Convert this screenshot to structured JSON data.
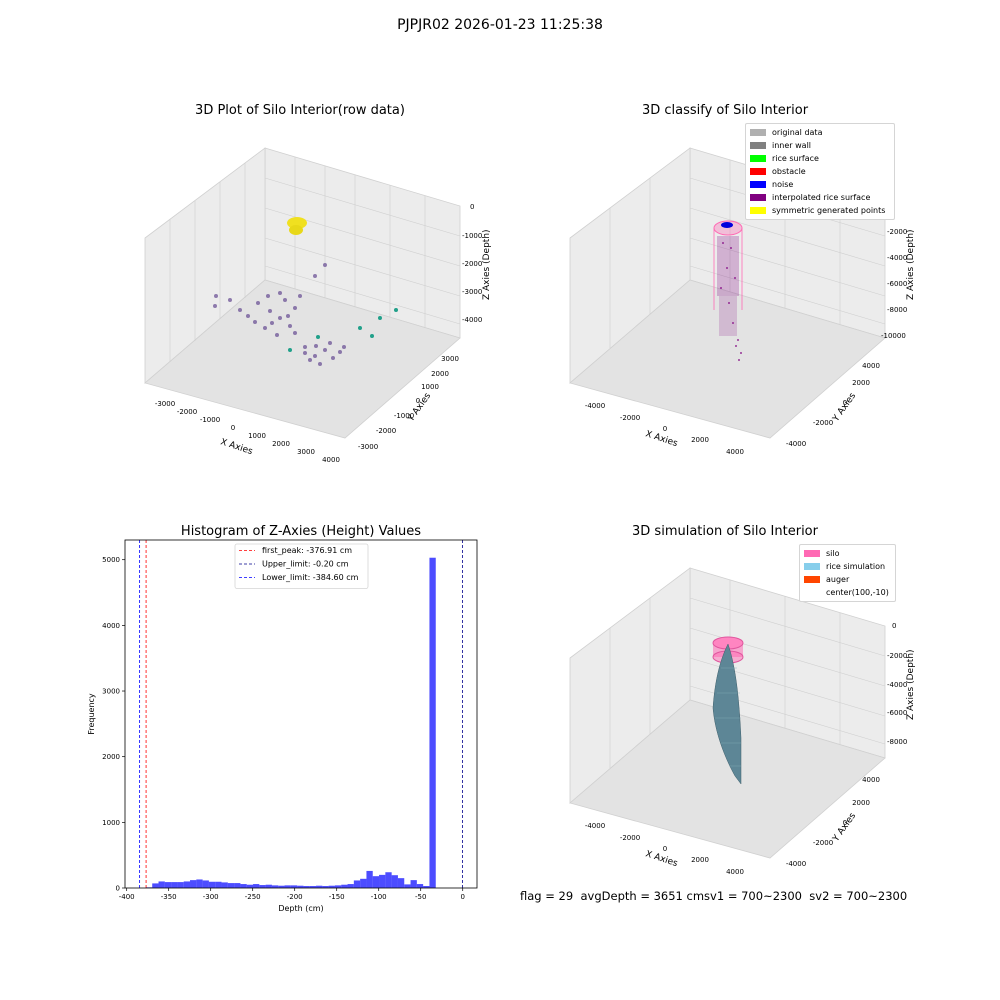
{
  "figure": {
    "suptitle": "PJPJR02 2026-01-23 11:25:38",
    "footer": "flag = 29  avgDepth = 3651 cmsv1 = 700~2300  sv2 = 700~2300"
  },
  "panels": {
    "raw": {
      "title": "3D Plot of Silo Interior(row data)",
      "xlabel": "X Axies",
      "ylabel": "Y Axies",
      "zlabel": "Z Axies (Depth)",
      "xticks": [
        "-3000",
        "-2000",
        "-1000",
        "0",
        "1000",
        "2000",
        "3000",
        "4000"
      ],
      "yticks": [
        "-3000",
        "-2000",
        "-1000",
        "0",
        "1000",
        "2000",
        "3000"
      ],
      "zticks": [
        "0",
        "-1000",
        "-2000",
        "-3000",
        "-4000"
      ]
    },
    "classify": {
      "title": "3D classify of Silo Interior",
      "xlabel": "X Axies",
      "ylabel": "Y Axies",
      "zlabel": "Z Axies (Depth)",
      "xticks": [
        "-4000",
        "-2000",
        "0",
        "2000",
        "4000"
      ],
      "yticks": [
        "-4000",
        "-2000",
        "0",
        "2000",
        "4000"
      ],
      "zticks": [
        "-2000",
        "-4000",
        "-6000",
        "-8000",
        "-10000"
      ],
      "legend": [
        {
          "label": "original data",
          "color": "#b0b0b0"
        },
        {
          "label": "inner wall",
          "color": "#808080"
        },
        {
          "label": "rice surface",
          "color": "#00ff00"
        },
        {
          "label": "obstacle",
          "color": "#ff0000"
        },
        {
          "label": "noise",
          "color": "#0000ff"
        },
        {
          "label": "interpolated rice surface",
          "color": "#800080"
        },
        {
          "label": "symmetric generated points",
          "color": "#ffff00"
        }
      ]
    },
    "simulation": {
      "title": "3D simulation of Silo Interior",
      "xlabel": "X Axies",
      "ylabel": "Y Axies",
      "zlabel": "Z Axies (Depth)",
      "xticks": [
        "-4000",
        "-2000",
        "0",
        "2000",
        "4000"
      ],
      "yticks": [
        "-4000",
        "-2000",
        "0",
        "2000",
        "4000"
      ],
      "zticks": [
        "0",
        "-2000",
        "-4000",
        "-6000",
        "-8000"
      ],
      "legend": [
        {
          "label": "silo",
          "color": "#ff69b4"
        },
        {
          "label": "rice simulation",
          "color": "#87ceeb"
        },
        {
          "label": "auger",
          "color": "#ff4500"
        },
        {
          "label": "center(100,-10)",
          "color": ""
        }
      ]
    }
  },
  "chart_data": {
    "type": "bar",
    "title": "Histogram of Z-Axies (Height) Values",
    "xlabel": "Depth (cm)",
    "ylabel": "Frequency",
    "bar_color": "#0000ff",
    "xlim": [
      -402,
      17
    ],
    "ylim": [
      0,
      5300
    ],
    "xticks": [
      -400,
      -350,
      -300,
      -250,
      -200,
      -150,
      -100,
      -50,
      0
    ],
    "yticks": [
      0,
      1000,
      2000,
      3000,
      4000,
      5000
    ],
    "bin_width": 7.5,
    "bins_start": -384.6,
    "counts": [
      0,
      10,
      70,
      100,
      90,
      90,
      90,
      100,
      120,
      130,
      115,
      95,
      95,
      85,
      75,
      75,
      60,
      50,
      60,
      45,
      50,
      40,
      35,
      40,
      40,
      35,
      30,
      30,
      35,
      30,
      35,
      40,
      50,
      60,
      115,
      140,
      260,
      180,
      200,
      240,
      195,
      150,
      55,
      120,
      60,
      30,
      5030
    ],
    "lines": [
      {
        "label": "first_peak: -376.91 cm",
        "x": -376.91,
        "color": "#ff0000"
      },
      {
        "label": "Upper_limit: -0.20 cm",
        "x": -0.2,
        "color": "#00008b"
      },
      {
        "label": "Lower_limit: -384.60 cm",
        "x": -384.6,
        "color": "#0000ff"
      }
    ],
    "legend_position": "upper center",
    "grid": false
  }
}
